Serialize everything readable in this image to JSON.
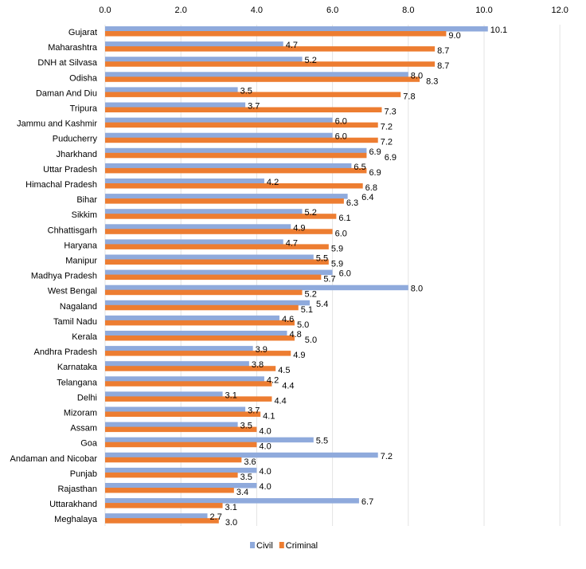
{
  "chart_data": {
    "type": "bar",
    "orientation": "horizontal",
    "title": "",
    "xlabel": "",
    "ylabel": "",
    "xlim": [
      0,
      12
    ],
    "x_ticks": [
      "0.0",
      "2.0",
      "4.0",
      "6.0",
      "8.0",
      "10.0",
      "12.0"
    ],
    "x_axis_position": "top",
    "grid": true,
    "legend": "bottom",
    "categories": [
      "Gujarat",
      "Maharashtra",
      "DNH at Silvasa",
      "Odisha",
      "Daman And Diu",
      "Tripura",
      "Jammu and Kashmir",
      "Puducherry",
      "Jharkhand",
      "Uttar Pradesh",
      "Himachal Pradesh",
      "Bihar",
      "Sikkim",
      "Chhattisgarh",
      "Haryana",
      "Manipur",
      "Madhya Pradesh",
      "West Bengal",
      "Nagaland",
      "Tamil Nadu",
      "Kerala",
      "Andhra Pradesh",
      "Karnataka",
      "Telangana",
      "Delhi",
      "Mizoram",
      "Assam",
      "Goa",
      "Andaman and Nicobar",
      "Punjab",
      "Rajasthan",
      "Uttarakhand",
      "Meghalaya"
    ],
    "series": [
      {
        "name": "Civil",
        "color": "#8faadc",
        "values": [
          10.1,
          4.7,
          5.2,
          8.0,
          3.5,
          3.7,
          6.0,
          6.0,
          6.9,
          6.5,
          4.2,
          6.4,
          5.2,
          4.9,
          4.7,
          5.5,
          6.0,
          8.0,
          5.4,
          4.6,
          4.8,
          3.9,
          3.8,
          4.2,
          3.1,
          3.7,
          3.5,
          5.5,
          7.2,
          4.0,
          4.0,
          6.7,
          2.7
        ]
      },
      {
        "name": "Criminal",
        "color": "#ed7d31",
        "values": [
          9.0,
          8.7,
          8.7,
          8.3,
          7.8,
          7.3,
          7.2,
          7.2,
          6.9,
          6.9,
          6.8,
          6.3,
          6.1,
          6.0,
          5.9,
          5.9,
          5.7,
          5.2,
          5.1,
          5.0,
          5.0,
          4.9,
          4.5,
          4.4,
          4.4,
          4.1,
          4.0,
          4.0,
          3.6,
          3.5,
          3.4,
          3.1,
          3.0
        ]
      }
    ]
  }
}
